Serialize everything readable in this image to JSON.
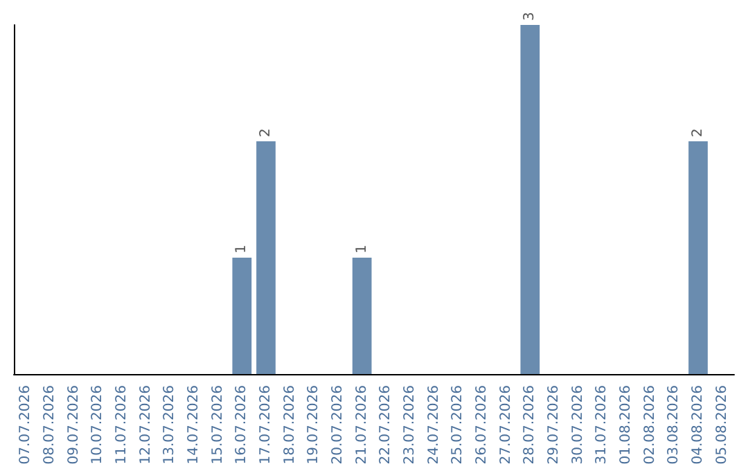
{
  "chart_data": {
    "type": "bar",
    "categories": [
      "07.07.2026",
      "08.07.2026",
      "09.07.2026",
      "10.07.2026",
      "11.07.2026",
      "12.07.2026",
      "13.07.2026",
      "14.07.2026",
      "15.07.2026",
      "16.07.2026",
      "17.07.2026",
      "18.07.2026",
      "19.07.2026",
      "20.07.2026",
      "21.07.2026",
      "22.07.2026",
      "23.07.2026",
      "24.07.2026",
      "25.07.2026",
      "26.07.2026",
      "27.07.2026",
      "28.07.2026",
      "29.07.2026",
      "30.07.2026",
      "31.07.2026",
      "01.08.2026",
      "02.08.2026",
      "03.08.2026",
      "04.08.2026",
      "05.08.2026"
    ],
    "values": [
      0,
      0,
      0,
      0,
      0,
      0,
      0,
      0,
      0,
      1,
      2,
      0,
      0,
      0,
      1,
      0,
      0,
      0,
      0,
      0,
      0,
      3,
      0,
      0,
      0,
      0,
      0,
      0,
      2,
      0
    ],
    "value_labels": [
      null,
      null,
      null,
      null,
      null,
      null,
      null,
      null,
      null,
      "1",
      "2",
      null,
      null,
      null,
      "1",
      null,
      null,
      null,
      null,
      null,
      null,
      "3",
      null,
      null,
      null,
      null,
      null,
      null,
      "2",
      null
    ],
    "color": "#6a8caf",
    "ylim": [
      0,
      3
    ],
    "tick_labels": "x"
  }
}
